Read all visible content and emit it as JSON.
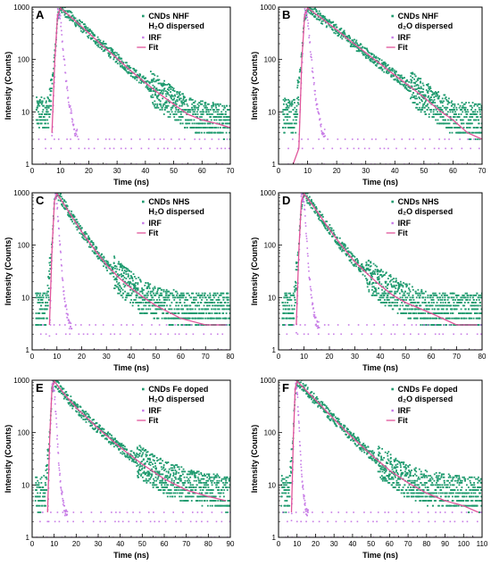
{
  "figure": {
    "style": {
      "data_color": "#1e9a6e",
      "irf_color": "#c77be6",
      "fit_color": "#e0559a",
      "axis_color": "#000000"
    },
    "panels": [
      {
        "letter": "A",
        "legend": [
          "CNDs NHF",
          "H₂O dispersed"
        ],
        "irf": "IRF",
        "fit": "Fit",
        "xlabel": "Time (ns)",
        "ylabel": "Intensity (Counts)"
      },
      {
        "letter": "B",
        "legend": [
          "CNDs NHF",
          "d₂O dispersed"
        ],
        "irf": "IRF",
        "fit": "Fit",
        "xlabel": "Time (ns)",
        "ylabel": "Intensity (Counts)"
      },
      {
        "letter": "C",
        "legend": [
          "CNDs NHS",
          "H₂O dispersed"
        ],
        "irf": "IRF",
        "fit": "Fit",
        "xlabel": "Time (ns)",
        "ylabel": "Intensity (Counts)"
      },
      {
        "letter": "D",
        "legend": [
          "CNDs NHS",
          "d₂O dispersed"
        ],
        "irf": "IRF",
        "fit": "Fit",
        "xlabel": "Time (ns)",
        "ylabel": "Intensity (Counts)"
      },
      {
        "letter": "E",
        "legend": [
          "CNDs Fe doped",
          "H₂O dispersed"
        ],
        "irf": "IRF",
        "fit": "Fit",
        "xlabel": "Time (ns)",
        "ylabel": "Intensity (Counts)"
      },
      {
        "letter": "F",
        "legend": [
          "CNDs Fe doped",
          "d₂O dispersed"
        ],
        "irf": "IRF",
        "fit": "Fit",
        "xlabel": "Time (ns)",
        "ylabel": "Intensity (Counts)"
      }
    ]
  },
  "chart_data": [
    {
      "type": "scatter",
      "panel": "A",
      "yscale": "log",
      "xlim": [
        0,
        70
      ],
      "ylim": [
        1,
        1000
      ],
      "xticks": [
        0,
        10,
        20,
        30,
        40,
        50,
        60,
        70
      ],
      "yticks": [
        1,
        10,
        100,
        1000
      ],
      "xlabel": "Time (ns)",
      "ylabel": "Intensity (Counts)",
      "legend_position": "top-right",
      "series": [
        {
          "name": "CNDs NHF H₂O dispersed",
          "x": [
            2,
            6,
            8,
            9,
            10,
            15,
            20,
            25,
            30,
            35,
            40,
            45,
            50,
            55,
            60,
            65,
            70
          ],
          "y": [
            9,
            10,
            120,
            600,
            1000,
            560,
            320,
            180,
            105,
            60,
            36,
            22,
            14,
            10,
            8,
            7,
            7
          ]
        },
        {
          "name": "IRF",
          "x": [
            7,
            8,
            9,
            10,
            11,
            12,
            13,
            14,
            15
          ],
          "y": [
            3,
            60,
            900,
            600,
            150,
            40,
            15,
            8,
            4
          ]
        },
        {
          "name": "Fit",
          "x": [
            7,
            8,
            9,
            10,
            15,
            20,
            25,
            30,
            35,
            40,
            45,
            50,
            55,
            60,
            65,
            70
          ],
          "y": [
            4,
            100,
            700,
            960,
            560,
            320,
            180,
            105,
            60,
            36,
            22,
            14,
            9,
            7,
            6,
            5
          ]
        }
      ]
    },
    {
      "type": "scatter",
      "panel": "B",
      "yscale": "log",
      "xlim": [
        0,
        70
      ],
      "ylim": [
        1,
        1000
      ],
      "xticks": [
        0,
        10,
        20,
        30,
        40,
        50,
        60,
        70
      ],
      "yticks": [
        1,
        10,
        100,
        1000
      ],
      "xlabel": "Time (ns)",
      "ylabel": "Intensity (Counts)",
      "legend_position": "top-right",
      "series": [
        {
          "name": "CNDs NHF d₂O dispersed",
          "x": [
            2,
            6,
            8,
            9,
            10,
            15,
            20,
            25,
            30,
            35,
            40,
            45,
            50,
            55,
            60,
            65,
            70
          ],
          "y": [
            9,
            9,
            120,
            600,
            1000,
            600,
            370,
            220,
            135,
            82,
            50,
            31,
            19,
            12,
            8,
            7,
            7
          ]
        },
        {
          "name": "IRF",
          "x": [
            7,
            8,
            9,
            10,
            11,
            12,
            13,
            14,
            15
          ],
          "y": [
            3,
            60,
            900,
            600,
            150,
            40,
            15,
            8,
            4
          ]
        },
        {
          "name": "Fit",
          "x": [
            5,
            7,
            8,
            9,
            10,
            15,
            20,
            25,
            30,
            35,
            40,
            45,
            50,
            55,
            60,
            65,
            70
          ],
          "y": [
            1,
            2,
            100,
            700,
            960,
            600,
            370,
            220,
            135,
            82,
            50,
            31,
            19,
            11,
            7,
            4,
            3
          ]
        }
      ]
    },
    {
      "type": "scatter",
      "panel": "C",
      "yscale": "log",
      "xlim": [
        0,
        80
      ],
      "ylim": [
        1,
        1000
      ],
      "xticks": [
        0,
        10,
        20,
        30,
        40,
        50,
        60,
        70,
        80
      ],
      "yticks": [
        1,
        10,
        100,
        1000
      ],
      "xlabel": "Time (ns)",
      "ylabel": "Intensity (Counts)",
      "legend_position": "top-right",
      "series": [
        {
          "name": "CNDs NHS H₂O dispersed",
          "x": [
            2,
            6,
            8,
            9,
            10,
            15,
            20,
            25,
            30,
            35,
            40,
            45,
            50,
            60,
            70,
            80
          ],
          "y": [
            6,
            6,
            100,
            600,
            1000,
            420,
            180,
            85,
            42,
            24,
            15,
            10,
            8,
            6,
            6,
            6
          ]
        },
        {
          "name": "IRF",
          "x": [
            7,
            8,
            9,
            10,
            11,
            12,
            13,
            14,
            15
          ],
          "y": [
            2,
            50,
            900,
            700,
            150,
            30,
            10,
            5,
            3
          ]
        },
        {
          "name": "Fit",
          "x": [
            7,
            8,
            9,
            10,
            15,
            20,
            25,
            30,
            35,
            40,
            45,
            50,
            60,
            70,
            78
          ],
          "y": [
            3,
            80,
            700,
            960,
            420,
            180,
            85,
            42,
            24,
            15,
            10,
            7,
            4,
            3,
            3
          ]
        }
      ]
    },
    {
      "type": "scatter",
      "panel": "D",
      "yscale": "log",
      "xlim": [
        0,
        80
      ],
      "ylim": [
        1,
        1000
      ],
      "xticks": [
        0,
        10,
        20,
        30,
        40,
        50,
        60,
        70,
        80
      ],
      "yticks": [
        1,
        10,
        100,
        1000
      ],
      "xlabel": "Time (ns)",
      "ylabel": "Intensity (Counts)",
      "legend_position": "top-right",
      "series": [
        {
          "name": "CNDs NHS d₂O dispersed",
          "x": [
            2,
            6,
            8,
            9,
            10,
            15,
            20,
            25,
            30,
            35,
            40,
            45,
            50,
            60,
            70,
            80
          ],
          "y": [
            6,
            6,
            100,
            600,
            1000,
            450,
            200,
            95,
            48,
            28,
            17,
            12,
            9,
            6,
            6,
            6
          ]
        },
        {
          "name": "IRF",
          "x": [
            7,
            8,
            9,
            10,
            11,
            12,
            13,
            14,
            15
          ],
          "y": [
            2,
            50,
            900,
            700,
            150,
            30,
            10,
            5,
            3
          ]
        },
        {
          "name": "Fit",
          "x": [
            7,
            8,
            9,
            10,
            15,
            20,
            25,
            30,
            35,
            40,
            45,
            50,
            60,
            70,
            78
          ],
          "y": [
            3,
            80,
            700,
            960,
            450,
            200,
            95,
            48,
            28,
            17,
            11,
            8,
            5,
            3,
            3
          ]
        }
      ]
    },
    {
      "type": "scatter",
      "panel": "E",
      "yscale": "log",
      "xlim": [
        0,
        90
      ],
      "ylim": [
        1,
        1000
      ],
      "xticks": [
        0,
        10,
        20,
        30,
        40,
        50,
        60,
        70,
        80,
        90
      ],
      "yticks": [
        1,
        10,
        100,
        1000
      ],
      "xlabel": "Time (ns)",
      "ylabel": "Intensity (Counts)",
      "legend_position": "top-right",
      "series": [
        {
          "name": "CNDs Fe doped H₂O dispersed",
          "x": [
            2,
            6,
            8,
            9,
            10,
            15,
            20,
            30,
            40,
            50,
            60,
            70,
            80,
            90
          ],
          "y": [
            7,
            7,
            100,
            600,
            1000,
            520,
            300,
            120,
            52,
            25,
            14,
            10,
            8,
            7
          ]
        },
        {
          "name": "IRF",
          "x": [
            7,
            8,
            9,
            10,
            11,
            12,
            13,
            14,
            15
          ],
          "y": [
            2,
            50,
            900,
            700,
            150,
            30,
            10,
            5,
            3
          ]
        },
        {
          "name": "Fit",
          "x": [
            7,
            8,
            9,
            10,
            15,
            20,
            30,
            40,
            50,
            60,
            70,
            80,
            88
          ],
          "y": [
            3,
            80,
            700,
            960,
            520,
            300,
            120,
            52,
            25,
            13,
            8,
            6,
            5
          ]
        }
      ]
    },
    {
      "type": "scatter",
      "panel": "F",
      "yscale": "log",
      "xlim": [
        0,
        110
      ],
      "ylim": [
        1,
        1000
      ],
      "xticks": [
        0,
        10,
        20,
        30,
        40,
        50,
        60,
        70,
        80,
        90,
        100,
        110
      ],
      "yticks": [
        1,
        10,
        100,
        1000
      ],
      "xlabel": "Time (ns)",
      "ylabel": "Intensity (Counts)",
      "legend_position": "top-right",
      "series": [
        {
          "name": "CNDs Fe doped d₂O dispersed",
          "x": [
            2,
            6,
            8,
            9,
            10,
            20,
            30,
            40,
            50,
            60,
            70,
            80,
            90,
            100,
            110
          ],
          "y": [
            7,
            7,
            100,
            600,
            1000,
            420,
            180,
            80,
            38,
            20,
            12,
            9,
            8,
            7,
            7
          ]
        },
        {
          "name": "IRF",
          "x": [
            7,
            8,
            9,
            10,
            11,
            12,
            13,
            14,
            15
          ],
          "y": [
            2,
            50,
            900,
            700,
            150,
            30,
            10,
            5,
            3
          ]
        },
        {
          "name": "Fit",
          "x": [
            7,
            8,
            9,
            10,
            20,
            30,
            40,
            50,
            60,
            70,
            80,
            90,
            100,
            108
          ],
          "y": [
            3,
            80,
            700,
            960,
            420,
            180,
            80,
            38,
            19,
            11,
            7,
            5,
            4,
            3
          ]
        }
      ]
    }
  ]
}
